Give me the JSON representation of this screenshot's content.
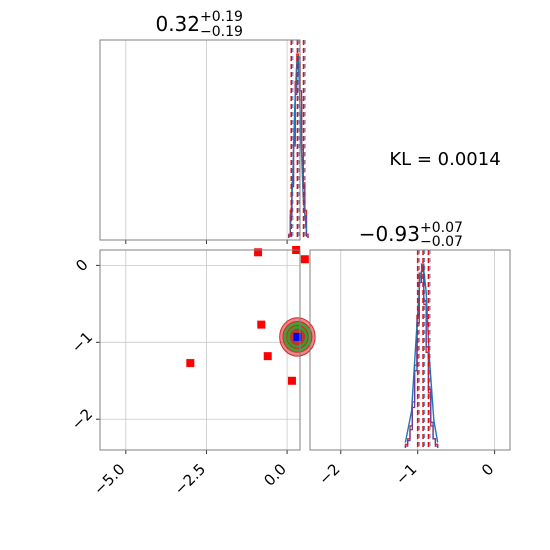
{
  "stat_label": "KL = 0.0014",
  "colors": {
    "hist_red": "#d62728",
    "hist_blue": "#1f77b4",
    "hist_purple": "#6a3d9a",
    "quantile_red": "#e01010",
    "quantile_blue": "#1f5fb4",
    "marker_red": "#ff0000",
    "contour_green": "#2ca02c",
    "center_blue": "#0000ff",
    "grid": "#c8c8c8",
    "frame": "#808080"
  },
  "chart_data": [
    {
      "type": "histogram",
      "panel": "top-left",
      "param_index": 0,
      "title": {
        "median": "0.32",
        "plus": "+0.19",
        "minus": "−0.19"
      },
      "xlim": [
        -5.8,
        0.4
      ],
      "x_ticks": [
        -5.0,
        -2.5,
        0.0
      ],
      "quantiles": [
        0.13,
        0.32,
        0.51
      ],
      "bin_edges": [
        0.05,
        0.1,
        0.15,
        0.2,
        0.25,
        0.3,
        0.35,
        0.4,
        0.45,
        0.5,
        0.55,
        0.6,
        0.65
      ],
      "series": [
        {
          "color_key": "hist_red",
          "counts": [
            0.02,
            0.15,
            0.3,
            0.52,
            0.85,
            1.0,
            0.95,
            0.75,
            0.48,
            0.3,
            0.15,
            0.02
          ]
        },
        {
          "color_key": "hist_purple",
          "counts": [
            0.01,
            0.12,
            0.28,
            0.5,
            0.78,
            0.92,
            0.98,
            0.8,
            0.5,
            0.28,
            0.12,
            0.01
          ]
        },
        {
          "color_key": "hist_blue",
          "curve_x": [
            0.1,
            0.18,
            0.24,
            0.29,
            0.33,
            0.37,
            0.42,
            0.5,
            0.6
          ],
          "curve_y": [
            0.04,
            0.35,
            0.72,
            0.92,
            0.99,
            0.88,
            0.6,
            0.22,
            0.04
          ]
        }
      ]
    },
    {
      "type": "histogram",
      "panel": "bottom-right",
      "param_index": 1,
      "title": {
        "median": "−0.93",
        "plus": "+0.07",
        "minus": "−0.07"
      },
      "xlim": [
        -2.4,
        0.2
      ],
      "x_ticks": [
        -2,
        -1,
        0
      ],
      "quantiles": [
        -1.0,
        -0.93,
        -0.86
      ],
      "bin_edges": [
        -1.16,
        -1.13,
        -1.1,
        -1.07,
        -1.04,
        -1.01,
        -0.98,
        -0.95,
        -0.92,
        -0.89,
        -0.86,
        -0.83,
        -0.8,
        -0.77,
        -0.74
      ],
      "series": [
        {
          "color_key": "hist_red",
          "counts": [
            0.02,
            0.05,
            0.12,
            0.25,
            0.45,
            0.72,
            0.95,
            1.0,
            0.78,
            0.52,
            0.3,
            0.12,
            0.05,
            0.02
          ]
        },
        {
          "color_key": "hist_purple",
          "counts": [
            0.01,
            0.04,
            0.1,
            0.22,
            0.42,
            0.68,
            0.9,
            0.96,
            0.8,
            0.55,
            0.32,
            0.14,
            0.05,
            0.01
          ]
        },
        {
          "color_key": "hist_blue",
          "curve_x": [
            -1.16,
            -1.08,
            -1.02,
            -0.97,
            -0.93,
            -0.89,
            -0.85,
            -0.79,
            -0.74
          ],
          "curve_y": [
            0.03,
            0.2,
            0.6,
            0.92,
            1.0,
            0.85,
            0.5,
            0.15,
            0.03
          ]
        }
      ]
    },
    {
      "type": "scatter",
      "panel": "bottom-left",
      "xlim": [
        -5.8,
        0.4
      ],
      "ylim": [
        -2.4,
        0.2
      ],
      "x_ticks": [
        -5.0,
        -2.5,
        0.0
      ],
      "x_tick_labels": [
        "−5.0",
        "−2.5",
        "0.0"
      ],
      "y_ticks": [
        0,
        -1,
        -2
      ],
      "y_tick_labels": [
        "0",
        "−1",
        "−2"
      ],
      "grid": true,
      "markers": [
        {
          "x": -0.9,
          "y": 0.17
        },
        {
          "x": 0.28,
          "y": 0.2
        },
        {
          "x": 0.55,
          "y": 0.08
        },
        {
          "x": -0.8,
          "y": -0.77
        },
        {
          "x": -0.6,
          "y": -1.18
        },
        {
          "x": -3.0,
          "y": -1.27
        },
        {
          "x": 0.15,
          "y": -1.5
        }
      ],
      "contour_center": {
        "x": 0.32,
        "y": -0.93
      },
      "contour_radii": {
        "rx": [
          0.55,
          0.45,
          0.33,
          0.22
        ],
        "ry": [
          0.25,
          0.2,
          0.15,
          0.1
        ]
      }
    }
  ]
}
